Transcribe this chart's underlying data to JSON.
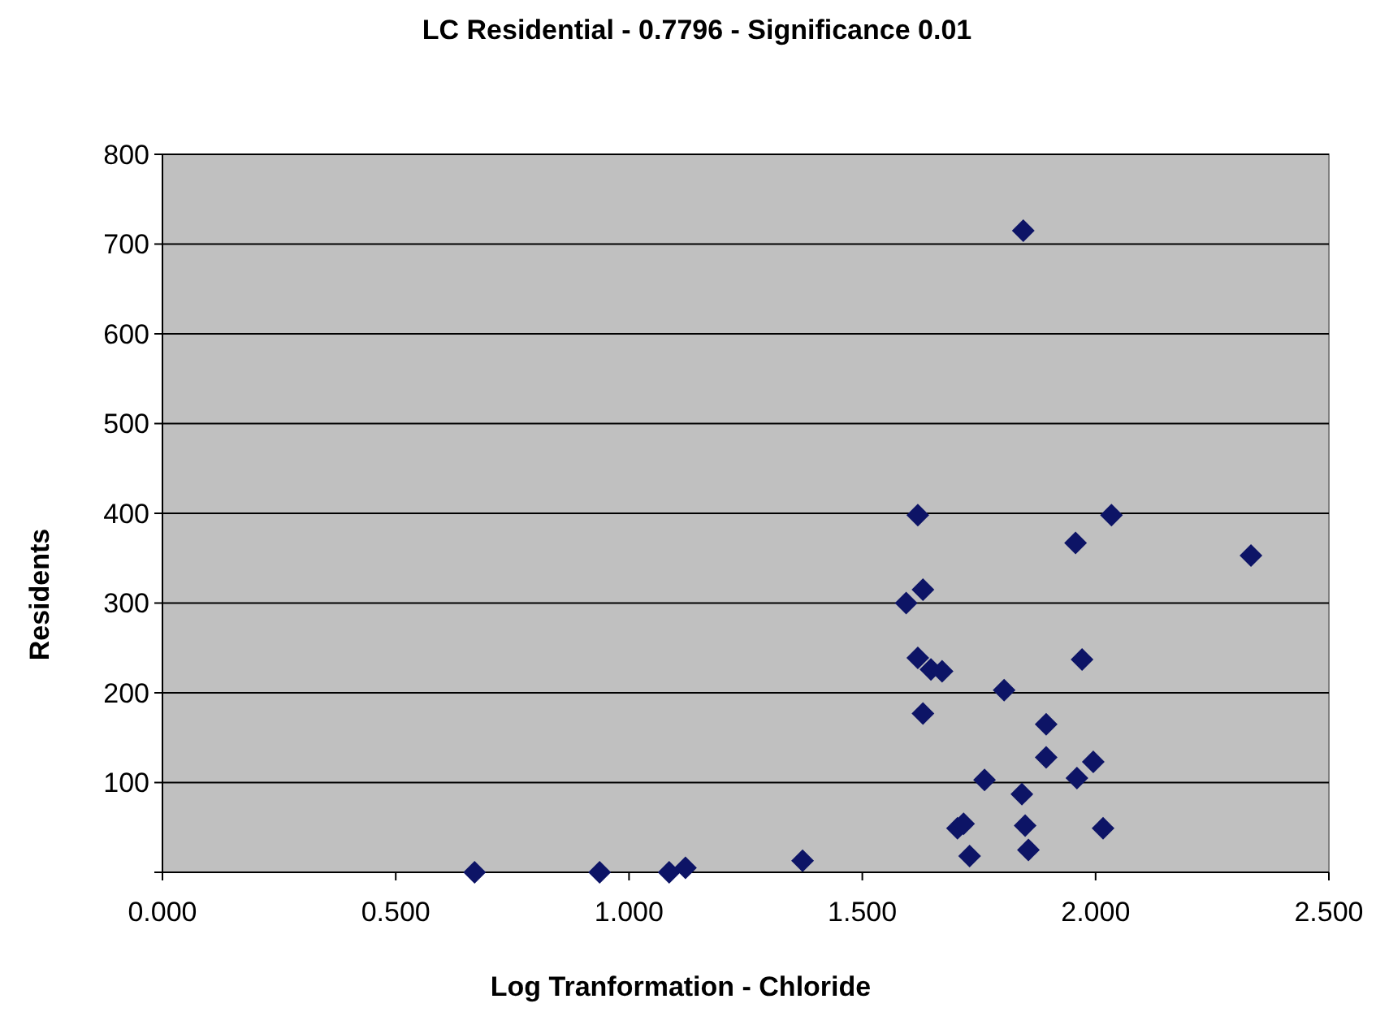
{
  "chart_data": {
    "type": "scatter",
    "title": "LC Residential - 0.7796 - Significance 0.01",
    "xlabel": "Log Tranformation - Chloride",
    "ylabel": "Residents",
    "xlim": [
      0,
      2.5
    ],
    "ylim": [
      0,
      800
    ],
    "xticks": [
      {
        "value": 0,
        "label": "0.000"
      },
      {
        "value": 0.5,
        "label": "0.500"
      },
      {
        "value": 1,
        "label": "1.000"
      },
      {
        "value": 1.5,
        "label": "1.500"
      },
      {
        "value": 2,
        "label": "2.000"
      },
      {
        "value": 2.5,
        "label": "2.500"
      }
    ],
    "yticks": [
      {
        "value": 0,
        "label": null
      },
      100,
      200,
      300,
      400,
      500,
      600,
      700,
      800
    ],
    "grid": "y",
    "marker": "diamond",
    "series": [
      {
        "color": "#0d1466",
        "x": [
          0.669,
          0.937,
          1.086,
          1.121,
          1.372,
          1.594,
          1.619,
          1.63,
          1.619,
          1.647,
          1.671,
          1.63,
          1.704,
          1.717,
          1.73,
          1.762,
          1.804,
          1.842,
          1.849,
          1.856,
          1.845,
          1.894,
          1.894,
          1.957,
          1.96,
          1.971,
          1.995,
          2.016,
          2.034,
          2.333
        ],
        "values": [
          0,
          0,
          0,
          5,
          13,
          300,
          398,
          315,
          239,
          226,
          224,
          177,
          49,
          54,
          18,
          103,
          203,
          87,
          52,
          25,
          715,
          165,
          128,
          367,
          105,
          237,
          123,
          49,
          398,
          353
        ]
      }
    ]
  }
}
